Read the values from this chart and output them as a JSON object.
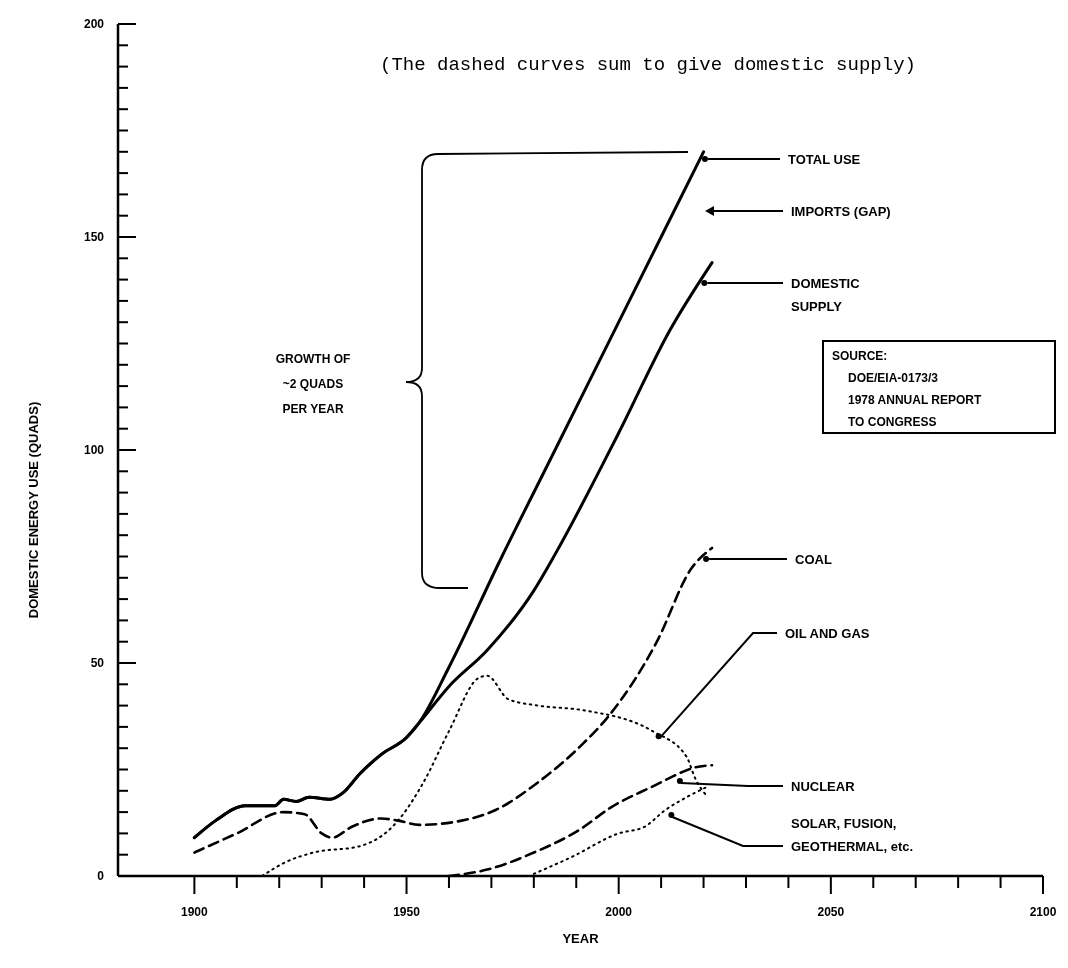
{
  "chart_data": {
    "type": "line",
    "xlabel": "YEAR",
    "ylabel": "DOMESTIC ENERGY USE (QUADS)",
    "xlim": [
      1882,
      2100
    ],
    "ylim": [
      0,
      200
    ],
    "xticks": [
      1900,
      {
        "value": 1910,
        "label": null
      },
      {
        "value": 1920,
        "label": null
      },
      {
        "value": 1930,
        "label": null
      },
      {
        "value": 1940,
        "label": null
      },
      1950,
      {
        "value": 1960,
        "label": null
      },
      {
        "value": 1970,
        "label": null
      },
      {
        "value": 1980,
        "label": null
      },
      {
        "value": 1990,
        "label": null
      },
      2000,
      {
        "value": 2010,
        "label": null
      },
      {
        "value": 2020,
        "label": null
      },
      {
        "value": 2030,
        "label": null
      },
      {
        "value": 2040,
        "label": null
      },
      2050,
      {
        "value": 2060,
        "label": null
      },
      {
        "value": 2070,
        "label": null
      },
      {
        "value": 2080,
        "label": null
      },
      {
        "value": 2090,
        "label": null
      },
      2100
    ],
    "yticks": [
      0,
      {
        "value": 5,
        "label": null
      },
      {
        "value": 10,
        "label": null
      },
      {
        "value": 15,
        "label": null
      },
      {
        "value": 20,
        "label": null
      },
      {
        "value": 25,
        "label": null
      },
      {
        "value": 30,
        "label": null
      },
      {
        "value": 35,
        "label": null
      },
      {
        "value": 40,
        "label": null
      },
      {
        "value": 45,
        "label": null
      },
      50,
      {
        "value": 55,
        "label": null
      },
      {
        "value": 60,
        "label": null
      },
      {
        "value": 65,
        "label": null
      },
      {
        "value": 70,
        "label": null
      },
      {
        "value": 75,
        "label": null
      },
      {
        "value": 80,
        "label": null
      },
      {
        "value": 85,
        "label": null
      },
      {
        "value": 90,
        "label": null
      },
      {
        "value": 95,
        "label": null
      },
      100,
      {
        "value": 105,
        "label": null
      },
      {
        "value": 110,
        "label": null
      },
      {
        "value": 115,
        "label": null
      },
      {
        "value": 120,
        "label": null
      },
      {
        "value": 125,
        "label": null
      },
      {
        "value": 130,
        "label": null
      },
      {
        "value": 135,
        "label": null
      },
      {
        "value": 140,
        "label": null
      },
      {
        "value": 145,
        "label": null
      },
      150,
      {
        "value": 155,
        "label": null
      },
      {
        "value": 160,
        "label": null
      },
      {
        "value": 165,
        "label": null
      },
      {
        "value": 170,
        "label": null
      },
      {
        "value": 175,
        "label": null
      },
      {
        "value": 180,
        "label": null
      },
      {
        "value": 185,
        "label": null
      },
      {
        "value": 190,
        "label": null
      },
      {
        "value": 195,
        "label": null
      },
      200
    ],
    "grid": false,
    "marker": "none",
    "series": [
      {
        "name": "TOTAL USE",
        "color": "#000000",
        "line_style": "solid",
        "x": [
          1900,
          1905,
          1912,
          1919,
          1921,
          1924,
          1927,
          1932,
          1935,
          1939,
          1944,
          1950,
          1953,
          1960,
          1972,
          1985,
          2000,
          2010,
          2020
        ],
        "values": [
          9,
          13,
          16.5,
          16.5,
          18,
          17.5,
          18.5,
          18,
          19.5,
          24,
          28.5,
          32.5,
          36,
          49,
          74,
          100,
          130,
          150,
          170
        ]
      },
      {
        "name": "DOMESTIC SUPPLY",
        "color": "#000000",
        "line_style": "solid",
        "x": [
          1900,
          1905,
          1912,
          1919,
          1921,
          1924,
          1927,
          1932,
          1935,
          1939,
          1944,
          1950,
          1953,
          1960,
          1969,
          1980,
          1985,
          2000,
          2012,
          2022
        ],
        "values": [
          9,
          13,
          16.5,
          16.5,
          18,
          17.5,
          18.5,
          18,
          19.5,
          24,
          28.5,
          32.5,
          36,
          44.5,
          53,
          67,
          75.5,
          104,
          128,
          144
        ]
      },
      {
        "name": "COAL",
        "color": "#000000",
        "line_style": "dashed",
        "x": [
          1900,
          1910,
          1921,
          1926,
          1930,
          1932.5,
          1937,
          1944,
          1948,
          1953,
          1963,
          1971,
          1981,
          1991,
          1998,
          2009,
          2017,
          2022
        ],
        "values": [
          5.5,
          10,
          15,
          14.5,
          10,
          9,
          11.5,
          13.5,
          13,
          12,
          13,
          15.5,
          22,
          30.5,
          38,
          55,
          72,
          77
        ]
      },
      {
        "name": "OIL AND GAS",
        "color": "#000000",
        "line_style": "dotted",
        "x": [
          1916,
          1921,
          1928,
          1939,
          1948,
          1954,
          1960,
          1967,
          1969,
          1974,
          1981,
          1991,
          2008,
          2016,
          2018,
          2021
        ],
        "values": [
          0,
          3,
          5.5,
          7,
          13,
          22,
          34,
          46.5,
          47,
          41.5,
          40,
          39,
          34,
          28,
          23,
          18.5
        ]
      },
      {
        "name": "NUCLEAR",
        "color": "#000000",
        "line_style": "dashed",
        "x": [
          1960,
          1969,
          1980,
          1991,
          1998,
          2009,
          2013,
          2018,
          2022
        ],
        "values": [
          0,
          1.5,
          5.5,
          11,
          16,
          21.5,
          23.5,
          25.5,
          26
        ]
      },
      {
        "name": "SOLAR, FUSION, GEOTHERMAL, etc.",
        "color": "#000000",
        "line_style": "dotted",
        "x": [
          1980,
          1989,
          2000,
          2006,
          2011,
          2016,
          2021
        ],
        "values": [
          0.5,
          4.5,
          10,
          11.5,
          15.5,
          18.5,
          21
        ]
      }
    ],
    "annotations": [
      "(The dashed curves sum to give domestic supply)",
      "GROWTH OF ~2 QUADS PER YEAR",
      "IMPORTS (GAP)",
      "SOURCE: DOE/EIA-0173/3 1978 ANNUAL REPORT TO CONGRESS"
    ]
  }
}
